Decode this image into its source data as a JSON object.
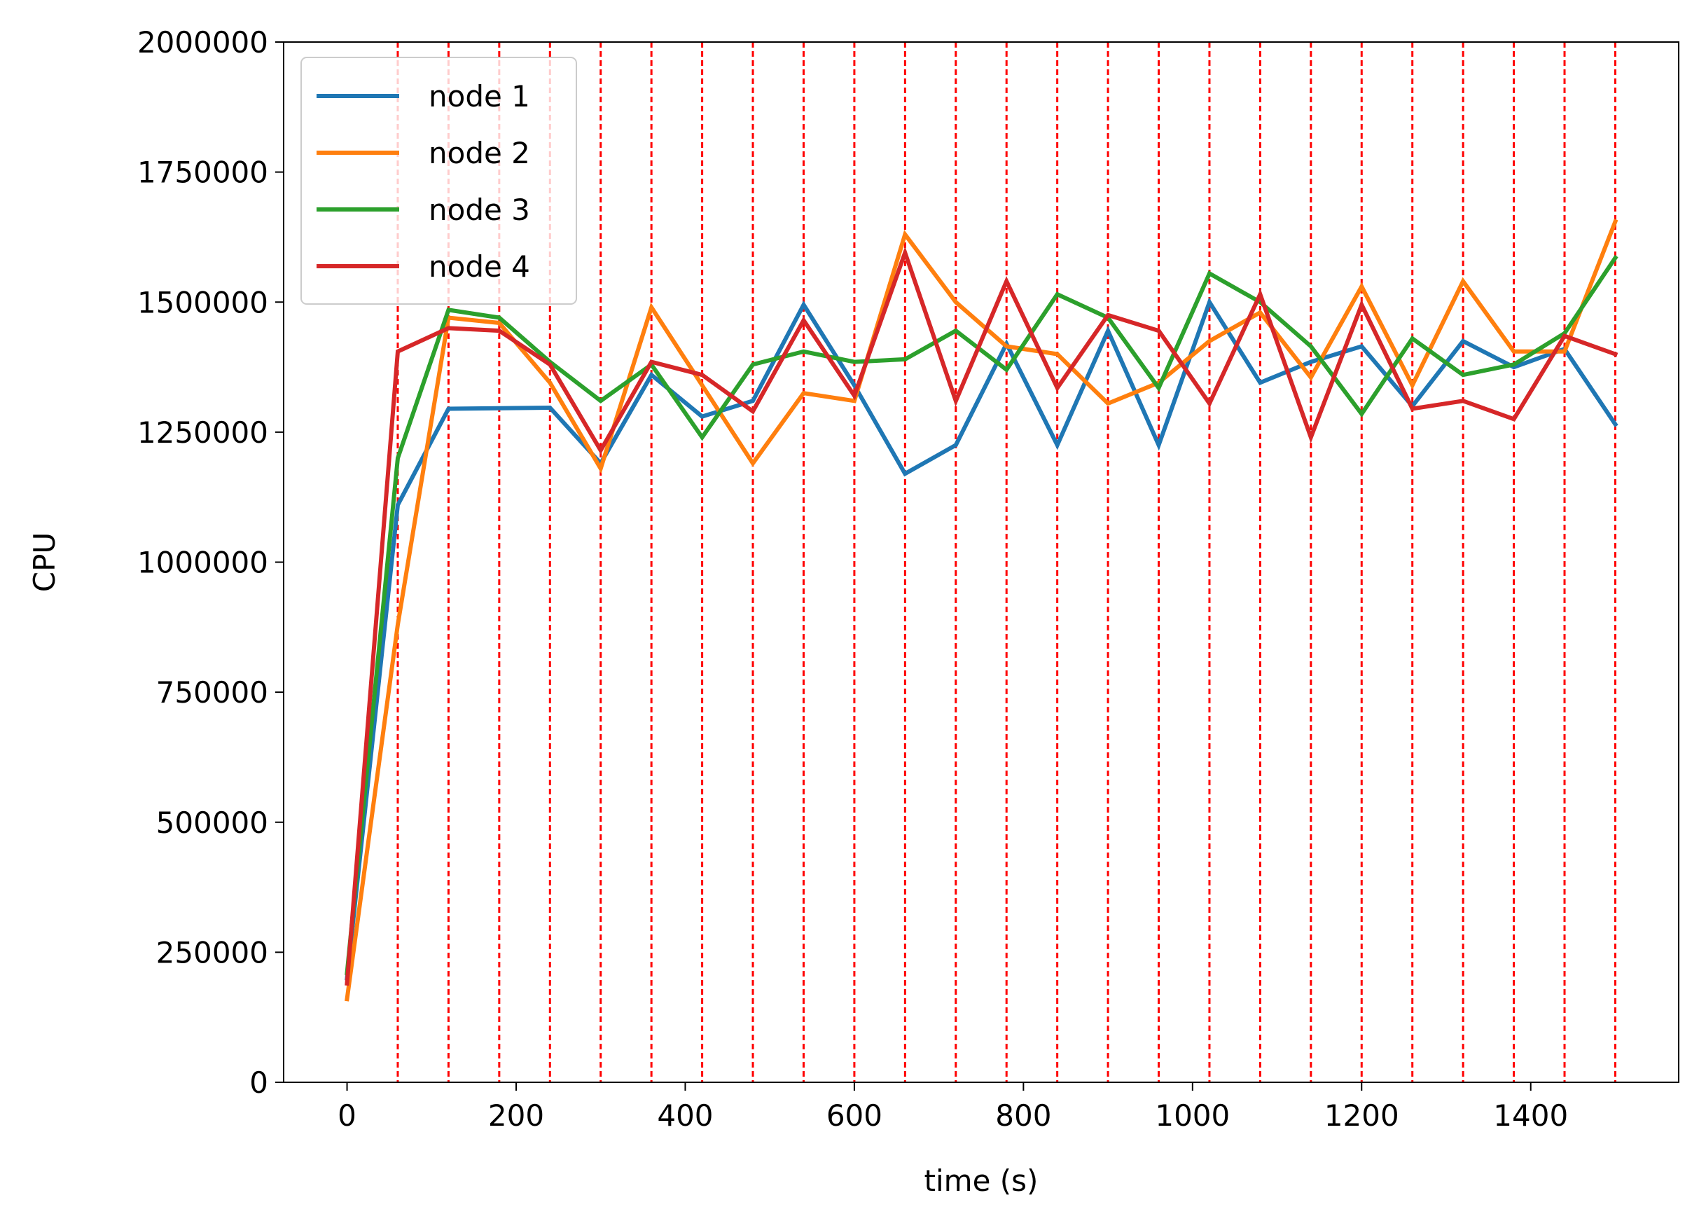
{
  "chart_data": {
    "type": "line",
    "title": "",
    "xlabel": "time (s)",
    "ylabel": "CPU",
    "xlim": [
      -75,
      1575
    ],
    "ylim": [
      0,
      2000000
    ],
    "xticks": [
      0,
      200,
      400,
      600,
      800,
      1000,
      1200,
      1400
    ],
    "yticks": [
      0,
      250000,
      500000,
      750000,
      1000000,
      1250000,
      1500000,
      1750000,
      2000000
    ],
    "grid": false,
    "legend_position": "top-left",
    "vlines": {
      "color": "#ff0000",
      "style": "dashed",
      "x": [
        60,
        120,
        180,
        240,
        300,
        360,
        420,
        480,
        540,
        600,
        660,
        720,
        780,
        840,
        900,
        960,
        1020,
        1080,
        1140,
        1200,
        1260,
        1320,
        1380,
        1440,
        1500
      ]
    },
    "x": [
      0,
      60,
      120,
      180,
      240,
      300,
      360,
      420,
      480,
      540,
      600,
      660,
      720,
      780,
      840,
      900,
      960,
      1020,
      1080,
      1140,
      1200,
      1260,
      1320,
      1380,
      1440,
      1500
    ],
    "series": [
      {
        "name": "node 1",
        "color": "#1f77b4",
        "values": [
          200000,
          1110000,
          1295000,
          1296000,
          1297000,
          1190000,
          1360000,
          1280000,
          1310000,
          1495000,
          1340000,
          1170000,
          1225000,
          1420000,
          1225000,
          1445000,
          1225000,
          1500000,
          1345000,
          1385000,
          1415000,
          1300000,
          1425000,
          1375000,
          1410000,
          1265000
        ]
      },
      {
        "name": "node 2",
        "color": "#ff7f0e",
        "values": [
          160000,
          880000,
          1470000,
          1460000,
          1345000,
          1180000,
          1490000,
          1340000,
          1190000,
          1325000,
          1310000,
          1630000,
          1500000,
          1415000,
          1400000,
          1305000,
          1345000,
          1425000,
          1480000,
          1355000,
          1530000,
          1340000,
          1540000,
          1405000,
          1405000,
          1655000
        ]
      },
      {
        "name": "node 3",
        "color": "#2ca02c",
        "values": [
          210000,
          1200000,
          1485000,
          1470000,
          1385000,
          1310000,
          1380000,
          1240000,
          1380000,
          1405000,
          1385000,
          1390000,
          1445000,
          1370000,
          1515000,
          1470000,
          1335000,
          1555000,
          1500000,
          1415000,
          1285000,
          1430000,
          1360000,
          1380000,
          1440000,
          1585000
        ]
      },
      {
        "name": "node 4",
        "color": "#d62728",
        "values": [
          190000,
          1405000,
          1450000,
          1445000,
          1380000,
          1215000,
          1385000,
          1360000,
          1290000,
          1465000,
          1320000,
          1595000,
          1310000,
          1540000,
          1335000,
          1475000,
          1445000,
          1305000,
          1515000,
          1240000,
          1495000,
          1295000,
          1310000,
          1275000,
          1435000,
          1400000
        ]
      }
    ]
  }
}
